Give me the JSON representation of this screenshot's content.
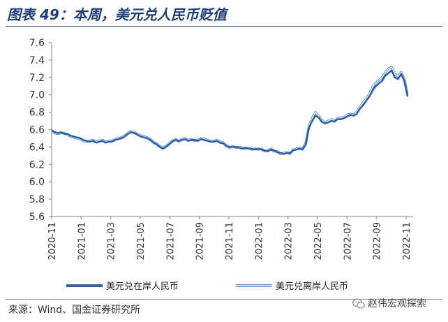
{
  "header": {
    "title": "图表 49：本周，美元兑人民币贬值"
  },
  "footer": {
    "source": "来源：Wind、国金证券研究所",
    "watermark": "赵伟宏观探索"
  },
  "colors": {
    "title": "#1f3f78",
    "onshore": "#2e5fa6",
    "offshore": "#a9c8ec",
    "axis": "#808080"
  },
  "chart_data": {
    "type": "line",
    "title": "",
    "xlabel": "",
    "ylabel": "",
    "ylim": [
      5.6,
      7.6
    ],
    "yticks": [
      "5.6",
      "5.8",
      "6.0",
      "6.2",
      "6.4",
      "6.6",
      "6.8",
      "7.0",
      "7.2",
      "7.4",
      "7.6"
    ],
    "xticks": [
      "2020-11",
      "2021-01",
      "2021-03",
      "2021-05",
      "2021-07",
      "2021-09",
      "2021-11",
      "2022-01",
      "2022-03",
      "2022-05",
      "2022-07",
      "2022-09",
      "2022-11"
    ],
    "x": [
      "2020-11",
      "2020-12",
      "2021-01",
      "2021-02",
      "2021-03",
      "2021-04",
      "2021-05",
      "2021-06",
      "2021-07",
      "2021-08",
      "2021-09",
      "2021-10",
      "2021-11",
      "2021-12",
      "2022-01",
      "2022-02",
      "2022-03",
      "2022-04",
      "2022-05",
      "2022-06",
      "2022-07",
      "2022-08",
      "2022-09",
      "2022-10",
      "2022-11"
    ],
    "legend": "bottom",
    "series": [
      {
        "name": "美元兑在岸人民币",
        "values": [
          6.58,
          6.53,
          6.46,
          6.47,
          6.54,
          6.51,
          6.4,
          6.48,
          6.48,
          6.47,
          6.46,
          6.4,
          6.38,
          6.37,
          6.35,
          6.32,
          6.36,
          6.58,
          6.68,
          6.7,
          6.75,
          6.85,
          7.02,
          7.25,
          7.1
        ]
      },
      {
        "name": "美元兑离岸人民币",
        "values": [
          6.57,
          6.52,
          6.47,
          6.48,
          6.55,
          6.52,
          6.41,
          6.49,
          6.47,
          6.48,
          6.47,
          6.39,
          6.39,
          6.36,
          6.36,
          6.33,
          6.37,
          6.6,
          6.7,
          6.71,
          6.76,
          6.86,
          7.05,
          7.28,
          7.12
        ]
      }
    ],
    "detail": {
      "onshore": [
        6.59,
        6.57,
        6.56,
        6.57,
        6.55,
        6.55,
        6.53,
        6.52,
        6.51,
        6.5,
        6.48,
        6.47,
        6.46,
        6.47,
        6.45,
        6.46,
        6.47,
        6.45,
        6.46,
        6.46,
        6.48,
        6.49,
        6.5,
        6.52,
        6.55,
        6.57,
        6.56,
        6.54,
        6.52,
        6.51,
        6.5,
        6.48,
        6.45,
        6.43,
        6.4,
        6.38,
        6.4,
        6.43,
        6.46,
        6.48,
        6.47,
        6.48,
        6.49,
        6.47,
        6.48,
        6.48,
        6.47,
        6.49,
        6.48,
        6.47,
        6.46,
        6.46,
        6.47,
        6.45,
        6.44,
        6.41,
        6.4,
        6.4,
        6.4,
        6.39,
        6.38,
        6.39,
        6.38,
        6.38,
        6.37,
        6.38,
        6.37,
        6.36,
        6.35,
        6.37,
        6.36,
        6.34,
        6.33,
        6.32,
        6.33,
        6.33,
        6.36,
        6.37,
        6.38,
        6.37,
        6.43,
        6.62,
        6.7,
        6.76,
        6.74,
        6.69,
        6.67,
        6.68,
        6.7,
        6.69,
        6.72,
        6.72,
        6.73,
        6.75,
        6.77,
        6.76,
        6.78,
        6.84,
        6.88,
        6.93,
        6.98,
        7.05,
        7.1,
        7.13,
        7.16,
        7.22,
        7.25,
        7.28,
        7.2,
        7.18,
        7.24,
        7.16,
        6.98
      ],
      "offshore": [
        6.58,
        6.56,
        6.55,
        6.56,
        6.56,
        6.54,
        6.52,
        6.51,
        6.5,
        6.49,
        6.47,
        6.46,
        6.47,
        6.48,
        6.46,
        6.47,
        6.48,
        6.46,
        6.47,
        6.47,
        6.49,
        6.5,
        6.51,
        6.53,
        6.56,
        6.58,
        6.57,
        6.55,
        6.53,
        6.52,
        6.51,
        6.49,
        6.46,
        6.44,
        6.41,
        6.39,
        6.41,
        6.44,
        6.47,
        6.49,
        6.46,
        6.49,
        6.5,
        6.48,
        6.49,
        6.47,
        6.48,
        6.5,
        6.49,
        6.48,
        6.47,
        6.47,
        6.48,
        6.46,
        6.45,
        6.42,
        6.39,
        6.41,
        6.39,
        6.4,
        6.39,
        6.38,
        6.39,
        6.37,
        6.38,
        6.37,
        6.38,
        6.35,
        6.36,
        6.38,
        6.35,
        6.35,
        6.32,
        6.33,
        6.34,
        6.32,
        6.37,
        6.38,
        6.39,
        6.38,
        6.45,
        6.64,
        6.73,
        6.8,
        6.76,
        6.71,
        6.68,
        6.7,
        6.72,
        6.7,
        6.73,
        6.74,
        6.74,
        6.77,
        6.78,
        6.77,
        6.8,
        6.86,
        6.91,
        6.96,
        7.01,
        7.09,
        7.14,
        7.17,
        7.2,
        7.26,
        7.3,
        7.32,
        7.24,
        7.21,
        7.26,
        7.18,
        7.01
      ]
    }
  }
}
